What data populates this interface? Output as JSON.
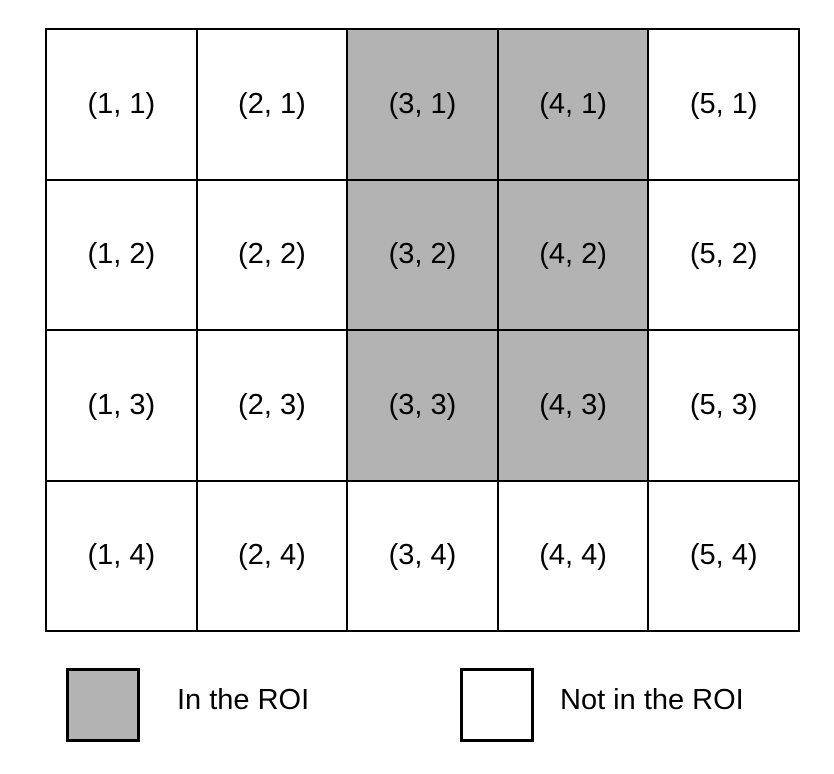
{
  "grid": {
    "rows": [
      {
        "cells": [
          {
            "label": "(1, 1)",
            "in_roi": false
          },
          {
            "label": "(2, 1)",
            "in_roi": false
          },
          {
            "label": "(3, 1)",
            "in_roi": true
          },
          {
            "label": "(4, 1)",
            "in_roi": true
          },
          {
            "label": "(5, 1)",
            "in_roi": false
          }
        ]
      },
      {
        "cells": [
          {
            "label": "(1, 2)",
            "in_roi": false
          },
          {
            "label": "(2, 2)",
            "in_roi": false
          },
          {
            "label": "(3, 2)",
            "in_roi": true
          },
          {
            "label": "(4, 2)",
            "in_roi": true
          },
          {
            "label": "(5, 2)",
            "in_roi": false
          }
        ]
      },
      {
        "cells": [
          {
            "label": "(1, 3)",
            "in_roi": false
          },
          {
            "label": "(2, 3)",
            "in_roi": false
          },
          {
            "label": "(3, 3)",
            "in_roi": true
          },
          {
            "label": "(4, 3)",
            "in_roi": true
          },
          {
            "label": "(5, 3)",
            "in_roi": false
          }
        ]
      },
      {
        "cells": [
          {
            "label": "(1, 4)",
            "in_roi": false
          },
          {
            "label": "(2, 4)",
            "in_roi": false
          },
          {
            "label": "(3, 4)",
            "in_roi": false
          },
          {
            "label": "(4, 4)",
            "in_roi": false
          },
          {
            "label": "(5, 4)",
            "in_roi": false
          }
        ]
      }
    ]
  },
  "legend": {
    "in_roi_label": "In the ROI",
    "not_in_roi_label": "Not in the ROI"
  },
  "colors": {
    "roi_fill": "#b3b3b3",
    "non_roi_fill": "#ffffff",
    "border": "#000000"
  }
}
